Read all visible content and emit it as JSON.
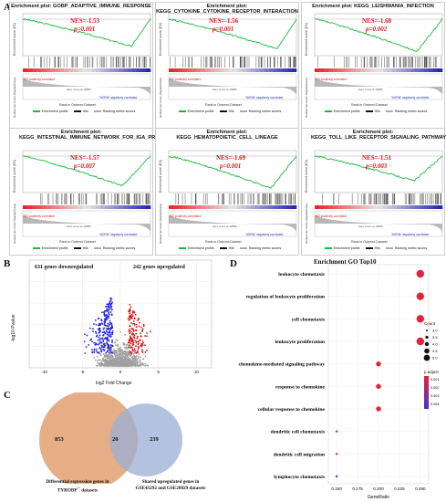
{
  "panels": {
    "a": "A",
    "b": "B",
    "c": "C",
    "d": "D"
  },
  "gsea": {
    "ylabel": "Enrichment score (ES)",
    "ylabel2": "Ranked list metric (Signal2Noise)",
    "xlabel": "Rank in Ordered Dataset",
    "zero_cross": "Zero cross at 10886",
    "pos_corr": "'IBD positively correlated'",
    "neg_corr": "'NORM' negatively correlated",
    "legend": {
      "profile": "Enrichment profile",
      "hits": "Hits",
      "metric": "Ranking metric scores"
    },
    "plots": [
      {
        "title": "Enrichment plot: GOBP_ADAPTIVE_IMMUNE_RESPONSE",
        "nes": "NES=-1.53",
        "p": "p=0.001",
        "min_es": -0.55,
        "min_at": 0.85
      },
      {
        "title": "Enrichment plot: KEGG_CYTOKINE_CYTOKINE_RECEPTOR_INTERACTION",
        "nes": "NES=-1.56",
        "p": "p=0.001",
        "min_es": -0.6,
        "min_at": 0.85
      },
      {
        "title": "Enrichment plot: KEGG_LEISHMANIA_INFECTION",
        "nes": "NES=-1.68",
        "p": "p=0.002",
        "min_es": -0.65,
        "min_at": 0.8
      },
      {
        "title": "Enrichment plot: KEGG_INTESTINAL_IMMUNE_NETWORK_FOR_IGA_PRODUCTION",
        "nes": "NES=-1.57",
        "p": "p=0.007",
        "min_es": -0.6,
        "min_at": 0.78
      },
      {
        "title": "Enrichment plot: KEGG_HEMATOPOIETIC_CELL_LINEAGE",
        "nes": "NES=-1.69",
        "p": "p=0.001",
        "min_es": -0.65,
        "min_at": 0.8
      },
      {
        "title": "Enrichment plot: KEGG_TOLL_LIKE_RECEPTOR_SIGNALING_PATHWAY",
        "nes": "NES=-1.51",
        "p": "p=0.003",
        "min_es": -0.5,
        "min_at": 0.78
      }
    ]
  },
  "volcano": {
    "down_label": "631 genes downregulated",
    "up_label": "242 genes upregulated",
    "xlabel": "log2 Fold Change",
    "ylabel": "-log10 Pvalue",
    "x_ticks": [
      "-10",
      "-5",
      "0",
      "5",
      "10"
    ],
    "down_color": "#2020e0",
    "up_color": "#e01010",
    "ns_color": "#a0a0a0"
  },
  "venn": {
    "left_count": "853",
    "overlap_count": "20",
    "right_count": "239",
    "left_caption_1": "Differential expression genes in",
    "left_caption_2": "TYROBP",
    "left_caption_sup": "-/-",
    "left_caption_3": "datasets",
    "right_caption_1": "Shared upregulated genes in",
    "right_caption_2": "GSE43292 and GSE28829 datasets",
    "left_color": "#e3a57a",
    "right_color": "#9aaed4"
  },
  "go": {
    "title": "Enrichment GO Top10",
    "xlabel": "GeneRatio",
    "x_ticks": [
      "0.150",
      "0.175",
      "0.200",
      "0.225",
      "0.250"
    ],
    "count_title": "Count",
    "count_levels": [
      "3.0",
      "3.5",
      "4.0",
      "4.5",
      "5.0"
    ],
    "padj_title": "p.adjust",
    "padj_ticks": [
      "0.001",
      "0.002",
      "0.003",
      "0.004"
    ],
    "xlim": [
      0.14,
      0.26
    ],
    "terms": [
      {
        "term": "leukocyte chemotaxis",
        "ratio": 0.25,
        "count": 5,
        "color": "#e8203a"
      },
      {
        "term": "regulation of leukocyte proliferation",
        "ratio": 0.25,
        "count": 5,
        "color": "#e8203a"
      },
      {
        "term": "cell chemotaxis",
        "ratio": 0.25,
        "count": 5,
        "color": "#e8203a"
      },
      {
        "term": "leukocyte proliferation",
        "ratio": 0.25,
        "count": 5,
        "color": "#e8203a"
      },
      {
        "term": "chemokine-mediated signaling pathway",
        "ratio": 0.2,
        "count": 4,
        "color": "#e8203a"
      },
      {
        "term": "response to chemokine",
        "ratio": 0.2,
        "count": 4,
        "color": "#e8203a"
      },
      {
        "term": "cellular response to chemokine",
        "ratio": 0.2,
        "count": 4,
        "color": "#e8203a"
      },
      {
        "term": "dendritic cell chemotaxis",
        "ratio": 0.15,
        "count": 3,
        "color": "#e8203a"
      },
      {
        "term": "dendritic cell migration",
        "ratio": 0.15,
        "count": 3,
        "color": "#e8203a"
      },
      {
        "term": "lymphocyte chemotaxis",
        "ratio": 0.15,
        "count": 3,
        "color": "#4a2fd0"
      }
    ]
  },
  "chart_data": [
    {
      "type": "bar",
      "title": "Enrichment GO Top10",
      "xlabel": "GeneRatio",
      "categories": [
        "leukocyte chemotaxis",
        "regulation of leukocyte proliferation",
        "cell chemotaxis",
        "leukocyte proliferation",
        "chemokine-mediated signaling pathway",
        "response to chemokine",
        "cellular response to chemokine",
        "dendritic cell chemotaxis",
        "dendritic cell migration",
        "lymphocyte chemotaxis"
      ],
      "values": [
        0.25,
        0.25,
        0.25,
        0.25,
        0.2,
        0.2,
        0.2,
        0.15,
        0.15,
        0.15
      ],
      "xlim": [
        0.14,
        0.26
      ]
    }
  ]
}
